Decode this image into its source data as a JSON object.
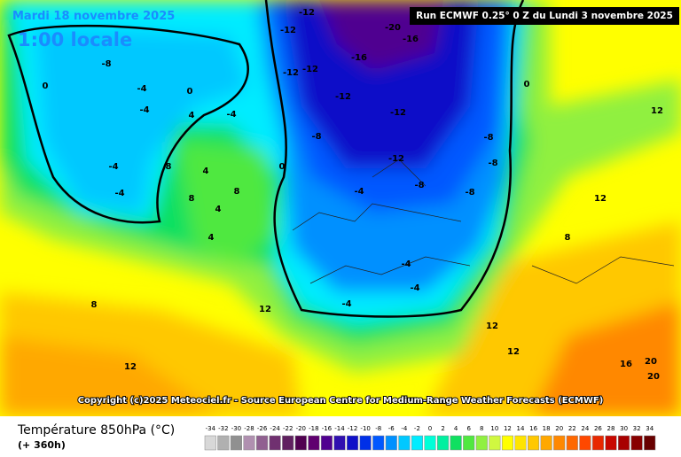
{
  "header": {
    "date": "Mardi 18 novembre 2025",
    "time": "1:00 locale",
    "run": "Run ECMWF 0.25° 0 Z du Lundi 3 novembre 2025"
  },
  "copyright": "Copyright (c)2025 Meteociel.fr - Source European Centre for Medium-Range Weather Forecasts (ECMWF)",
  "legend": {
    "title": "Température 850hPa (°C)",
    "subtitle": "(+ 360h)",
    "scale": [
      -34,
      -32,
      -30,
      -28,
      -26,
      -24,
      -22,
      -20,
      -18,
      -16,
      -14,
      -12,
      -10,
      -8,
      -6,
      -4,
      -2,
      0,
      2,
      4,
      6,
      8,
      10,
      12,
      14,
      16,
      18,
      20,
      22,
      24,
      26,
      28,
      30,
      32,
      34
    ],
    "colors": [
      "#d8d8d8",
      "#b0b0b0",
      "#909090",
      "#b090b0",
      "#906090",
      "#703070",
      "#602060",
      "#500050",
      "#600070",
      "#500090",
      "#3010b0",
      "#1010c8",
      "#0030e8",
      "#0058ff",
      "#0090ff",
      "#00c8ff",
      "#00ecff",
      "#00ffd8",
      "#00f0a0",
      "#10e060",
      "#50e840",
      "#90f040",
      "#d0f840",
      "#ffff00",
      "#ffe400",
      "#ffc800",
      "#ffa800",
      "#ff8800",
      "#ff6800",
      "#ff4800",
      "#e82800",
      "#c80800",
      "#a80000",
      "#880000",
      "#680000"
    ]
  },
  "map_labels": [
    "-12",
    "-12",
    "-12",
    "-12",
    "-12",
    "-12",
    "-12",
    "-8",
    "-8",
    "-8",
    "-8",
    "-8",
    "-8",
    "-4",
    "-4",
    "-4",
    "-4",
    "-4",
    "-4",
    "-4",
    "-4",
    "-4",
    "4",
    "4",
    "4",
    "4",
    "8",
    "8",
    "8",
    "8",
    "8",
    "12",
    "12",
    "12",
    "12",
    "12",
    "12",
    "-16",
    "-16",
    "-20",
    "16",
    "20",
    "20",
    "0",
    "0",
    "0",
    "0"
  ]
}
